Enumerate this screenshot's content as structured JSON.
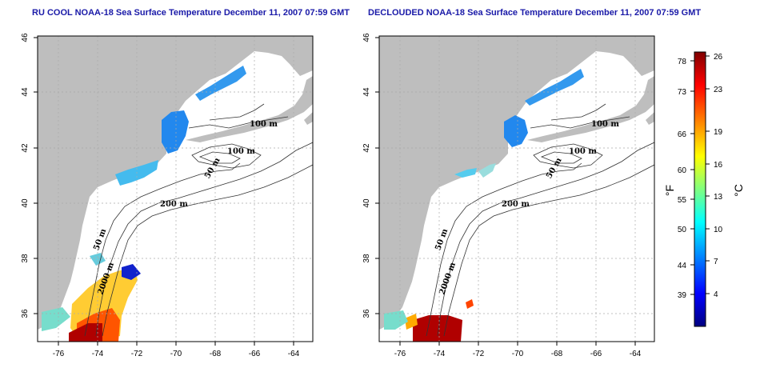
{
  "panels": [
    {
      "title": "RU COOL NOAA-18 Sea Surface Temperature December 11, 2007 07:59 GMT",
      "contour_labels": [
        "100 m",
        "100 m",
        "50 m",
        "200 m",
        "50 m",
        "2000 m"
      ]
    },
    {
      "title": "DECLOUDED NOAA-18 Sea Surface Temperature December 11, 2007 07:59 GMT",
      "contour_labels": [
        "100 m",
        "100 m",
        "50 m",
        "200 m",
        "50 m",
        "2000 m"
      ]
    }
  ],
  "x_ticks": [
    "-76",
    "-74",
    "-72",
    "-70",
    "-68",
    "-66",
    "-64"
  ],
  "y_ticks": [
    "46",
    "44",
    "42",
    "40",
    "38",
    "36"
  ],
  "colorbar": {
    "fahrenheit_ticks": [
      "78",
      "73",
      "66",
      "60",
      "55",
      "50",
      "44",
      "39"
    ],
    "celsius_ticks": [
      "26",
      "23",
      "19",
      "16",
      "13",
      "10",
      "7",
      "4"
    ],
    "fahrenheit_label": "°F",
    "celsius_label": "°C",
    "colors": [
      "#000080",
      "#0000ff",
      "#0080ff",
      "#00ffff",
      "#80ff80",
      "#ffff00",
      "#ff8000",
      "#ff0000",
      "#800000"
    ]
  },
  "colors": {
    "land": "#bebebe",
    "ocean": "#ffffff",
    "title": "#1a1aa8",
    "grid": "#aaaaaa",
    "contour": "#333333"
  }
}
